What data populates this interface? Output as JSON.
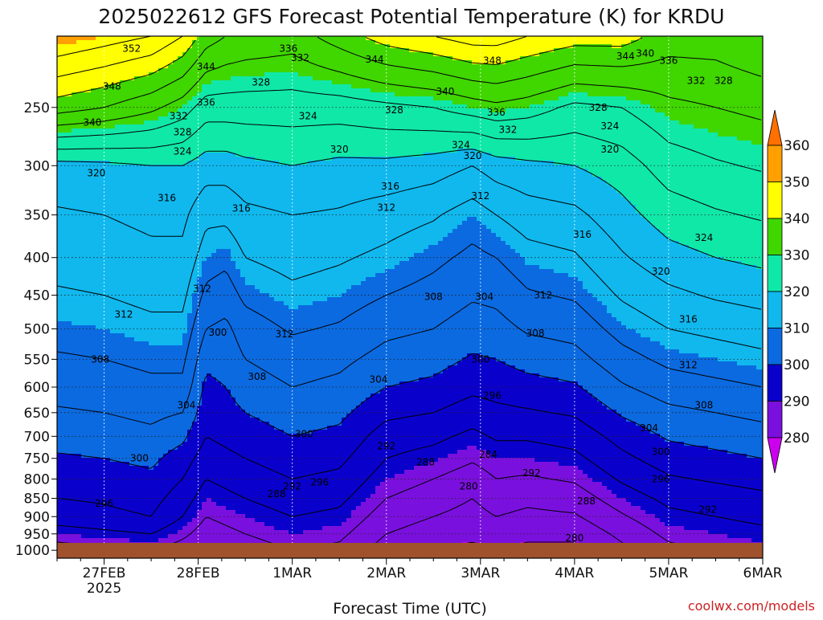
{
  "title": "2025022612 GFS Forecast Potential Temperature (K) for KRDU",
  "watermark": "coolwx.com/models",
  "chart_data": {
    "type": "heatmap",
    "title": "2025022612 GFS Forecast Potential Temperature (K) for KRDU",
    "xlabel": "Forecast Time (UTC)",
    "ylabel": "",
    "x_ticks": [
      {
        "label": "27FEB",
        "sub": "2025",
        "t": 24
      },
      {
        "label": "28FEB",
        "sub": "",
        "t": 48
      },
      {
        "label": "1MAR",
        "sub": "",
        "t": 72
      },
      {
        "label": "2MAR",
        "sub": "",
        "t": 96
      },
      {
        "label": "3MAR",
        "sub": "",
        "t": 120
      },
      {
        "label": "4MAR",
        "sub": "",
        "t": 144
      },
      {
        "label": "5MAR",
        "sub": "",
        "t": 168
      },
      {
        "label": "6MAR",
        "sub": "",
        "t": 192
      }
    ],
    "x_range_hours": [
      12,
      192
    ],
    "y_ticks": [
      250,
      300,
      350,
      400,
      450,
      500,
      550,
      600,
      650,
      700,
      750,
      800,
      850,
      900,
      950,
      1000
    ],
    "y_range_hPa": [
      200,
      1025
    ],
    "y_scale": "log",
    "grid": true,
    "colorbar": {
      "levels": [
        280,
        290,
        300,
        310,
        320,
        330,
        340,
        350,
        360
      ],
      "colors": [
        "#cc00ee",
        "#7a10dd",
        "#0a00cc",
        "#0b6ae0",
        "#10b8ee",
        "#10e8a8",
        "#40d600",
        "#ffff00",
        "#ffa000",
        "#ff7000"
      ],
      "labels": [
        "280",
        "290",
        "300",
        "310",
        "320",
        "330",
        "340",
        "350",
        "360"
      ]
    },
    "profiles": [
      {
        "t": 12,
        "p": [
          1000,
          950,
          900,
          850,
          800,
          750,
          700,
          650,
          600,
          550,
          500,
          450,
          400,
          350,
          300,
          250,
          200
        ],
        "theta": [
          286,
          290,
          294,
          296,
          297.5,
          299.5,
          301.5,
          303.5,
          305.5,
          307.5,
          309.5,
          311.5,
          313.5,
          315.5,
          318.5,
          338,
          352
        ]
      },
      {
        "t": 24,
        "p": [
          1000,
          950,
          900,
          850,
          800,
          750,
          700,
          650,
          600,
          550,
          500,
          450,
          400,
          350,
          300,
          250,
          200
        ],
        "theta": [
          287,
          291,
          295,
          296.5,
          298,
          300,
          302,
          304,
          306,
          308,
          310,
          312,
          314,
          316,
          319,
          336,
          350
        ]
      },
      {
        "t": 36,
        "p": [
          1000,
          950,
          900,
          850,
          800,
          750,
          700,
          650,
          600,
          550,
          500,
          450,
          400,
          350,
          300,
          250,
          200
        ],
        "theta": [
          288,
          292,
          296,
          297.5,
          299,
          301,
          303,
          305,
          307,
          309,
          311,
          313,
          315,
          317,
          320,
          333,
          348
        ]
      },
      {
        "t": 44,
        "p": [
          1000,
          950,
          900,
          850,
          800,
          750,
          700,
          650,
          600,
          550,
          500,
          450,
          400,
          350,
          300,
          250,
          200
        ],
        "theta": [
          286,
          289,
          292,
          294,
          296,
          298,
          301,
          304,
          307,
          309,
          311,
          313,
          315,
          317,
          320,
          330,
          344
        ]
      },
      {
        "t": 50,
        "p": [
          1000,
          950,
          900,
          850,
          800,
          750,
          700,
          650,
          600,
          550,
          500,
          450,
          400,
          350,
          300,
          250,
          200
        ],
        "theta": [
          284,
          286,
          288,
          290,
          292,
          294,
          296,
          297.5,
          299,
          301,
          304,
          307,
          310,
          313,
          318,
          326,
          338
        ]
      },
      {
        "t": 55,
        "p": [
          1000,
          950,
          900,
          850,
          800,
          750,
          700,
          650,
          600,
          550,
          500,
          450,
          400,
          350,
          300,
          250,
          200
        ],
        "theta": [
          285,
          287,
          289,
          291,
          293,
          295,
          297,
          298.5,
          300,
          301.5,
          303,
          306,
          309,
          313,
          318,
          326,
          336
        ]
      },
      {
        "t": 60,
        "p": [
          1000,
          950,
          900,
          850,
          800,
          750,
          700,
          650,
          600,
          550,
          500,
          450,
          400,
          350,
          300,
          250,
          200
        ],
        "theta": [
          286,
          288,
          290,
          292,
          294,
          296,
          298,
          300,
          302,
          304,
          306,
          309,
          312,
          315,
          319,
          326,
          335
        ]
      },
      {
        "t": 72,
        "p": [
          1000,
          950,
          900,
          850,
          800,
          750,
          700,
          650,
          600,
          550,
          500,
          450,
          400,
          350,
          300,
          250,
          200
        ],
        "theta": [
          288,
          290,
          292,
          294,
          296,
          298,
          300,
          302,
          304,
          306,
          308.5,
          311,
          313.5,
          316,
          320,
          326,
          334
        ]
      },
      {
        "t": 84,
        "p": [
          1000,
          950,
          900,
          850,
          800,
          750,
          700,
          650,
          600,
          550,
          500,
          450,
          400,
          350,
          300,
          250,
          200
        ],
        "theta": [
          287,
          289,
          291,
          293,
          295,
          297,
          299,
          301,
          303,
          305,
          307.5,
          310,
          312.5,
          315.5,
          319,
          326,
          338
        ]
      },
      {
        "t": 96,
        "p": [
          1000,
          950,
          900,
          850,
          800,
          750,
          700,
          650,
          600,
          550,
          500,
          450,
          400,
          350,
          300,
          250,
          200
        ],
        "theta": [
          282,
          284,
          286,
          288,
          290,
          292,
          294,
          297,
          300,
          302.5,
          305,
          308,
          311,
          314,
          319,
          327,
          342
        ]
      },
      {
        "t": 108,
        "p": [
          1000,
          950,
          900,
          850,
          800,
          750,
          700,
          650,
          600,
          550,
          500,
          450,
          400,
          350,
          300,
          250,
          200
        ],
        "theta": [
          280,
          282,
          284,
          286,
          288,
          290.5,
          293,
          296,
          299,
          301.5,
          304,
          306.5,
          309,
          312.5,
          318,
          328,
          344
        ]
      },
      {
        "t": 118,
        "p": [
          1000,
          950,
          900,
          850,
          800,
          750,
          700,
          650,
          600,
          550,
          500,
          450,
          400,
          350,
          300,
          250,
          200
        ],
        "theta": [
          279,
          281,
          282.5,
          284,
          286,
          288.5,
          291,
          294,
          297,
          299.5,
          302,
          304.5,
          307,
          310,
          316,
          330,
          346
        ]
      },
      {
        "t": 124,
        "p": [
          1000,
          950,
          900,
          850,
          800,
          750,
          700,
          650,
          600,
          550,
          500,
          450,
          400,
          350,
          300,
          250,
          200
        ],
        "theta": [
          280,
          282,
          284,
          286,
          288,
          290,
          292.5,
          295,
          297.5,
          300,
          302.5,
          305,
          308,
          312,
          318,
          331,
          346
        ]
      },
      {
        "t": 132,
        "p": [
          1000,
          950,
          900,
          850,
          800,
          750,
          700,
          650,
          600,
          550,
          500,
          450,
          400,
          350,
          300,
          250,
          200
        ],
        "theta": [
          279,
          281,
          283,
          285,
          287.5,
          290,
          292.5,
          295.5,
          298.5,
          301.5,
          304.5,
          307.5,
          310.5,
          314,
          319,
          330,
          344
        ]
      },
      {
        "t": 144,
        "p": [
          1000,
          950,
          900,
          850,
          800,
          750,
          700,
          650,
          600,
          550,
          500,
          450,
          400,
          350,
          300,
          250,
          200
        ],
        "theta": [
          279,
          281,
          283.5,
          286,
          288.5,
          291,
          293.5,
          296.5,
          299.5,
          302.5,
          305.5,
          308.5,
          311.5,
          315,
          320,
          327,
          342
        ]
      },
      {
        "t": 156,
        "p": [
          1000,
          950,
          900,
          850,
          800,
          750,
          700,
          650,
          600,
          550,
          500,
          450,
          400,
          350,
          300,
          250,
          200
        ],
        "theta": [
          283,
          285,
          287.5,
          290,
          292.5,
          295,
          297.5,
          300.5,
          303.5,
          306.5,
          309.5,
          312.5,
          315.5,
          318.5,
          322,
          328,
          342
        ]
      },
      {
        "t": 168,
        "p": [
          1000,
          950,
          900,
          850,
          800,
          750,
          700,
          650,
          600,
          550,
          500,
          450,
          400,
          350,
          300,
          250,
          200
        ],
        "theta": [
          287,
          289,
          291,
          293,
          295.5,
          298,
          300.5,
          303,
          306,
          309,
          312,
          315,
          318.5,
          322,
          326,
          331,
          338
        ]
      },
      {
        "t": 180,
        "p": [
          1000,
          950,
          900,
          850,
          800,
          750,
          700,
          650,
          600,
          550,
          500,
          450,
          400,
          350,
          300,
          250,
          200
        ],
        "theta": [
          288,
          290,
          292,
          294,
          296.5,
          299,
          301.5,
          304,
          307,
          310,
          313,
          316.5,
          320,
          323.5,
          327.5,
          332,
          338
        ]
      },
      {
        "t": 192,
        "p": [
          1000,
          950,
          900,
          850,
          800,
          750,
          700,
          650,
          600,
          550,
          500,
          450,
          400,
          350,
          300,
          250,
          200
        ],
        "theta": [
          289,
          291,
          293,
          295,
          297.5,
          300,
          302.5,
          305,
          308,
          311,
          314,
          317.5,
          321,
          324.5,
          328.5,
          333,
          340
        ]
      }
    ],
    "contour_labels": [
      {
        "text": "352",
        "t": 31,
        "p": 208
      },
      {
        "text": "344",
        "t": 50,
        "p": 220
      },
      {
        "text": "348",
        "t": 26,
        "p": 234
      },
      {
        "text": "336",
        "t": 50,
        "p": 246
      },
      {
        "text": "340",
        "t": 21,
        "p": 262
      },
      {
        "text": "332",
        "t": 43,
        "p": 257
      },
      {
        "text": "328",
        "t": 44,
        "p": 270
      },
      {
        "text": "324",
        "t": 44,
        "p": 287
      },
      {
        "text": "320",
        "t": 22,
        "p": 307
      },
      {
        "text": "316",
        "t": 40,
        "p": 332
      },
      {
        "text": "316",
        "t": 59,
        "p": 343
      },
      {
        "text": "312",
        "t": 49,
        "p": 441
      },
      {
        "text": "312",
        "t": 29,
        "p": 478
      },
      {
        "text": "300",
        "t": 53,
        "p": 506
      },
      {
        "text": "308",
        "t": 23,
        "p": 550
      },
      {
        "text": "312",
        "t": 70,
        "p": 508
      },
      {
        "text": "308",
        "t": 63,
        "p": 581
      },
      {
        "text": "304",
        "t": 45,
        "p": 635
      },
      {
        "text": "300",
        "t": 33,
        "p": 750
      },
      {
        "text": "296",
        "t": 24,
        "p": 864
      },
      {
        "text": "288",
        "t": 68,
        "p": 838
      },
      {
        "text": "292",
        "t": 72,
        "p": 818
      },
      {
        "text": "296",
        "t": 79,
        "p": 808
      },
      {
        "text": "300",
        "t": 75,
        "p": 695
      },
      {
        "text": "304",
        "t": 94,
        "p": 586
      },
      {
        "text": "292",
        "t": 96,
        "p": 722
      },
      {
        "text": "288",
        "t": 106,
        "p": 759
      },
      {
        "text": "280",
        "t": 117,
        "p": 818
      },
      {
        "text": "284",
        "t": 122,
        "p": 741
      },
      {
        "text": "296",
        "t": 123,
        "p": 616
      },
      {
        "text": "300",
        "t": 120,
        "p": 550
      },
      {
        "text": "304",
        "t": 121,
        "p": 452
      },
      {
        "text": "308",
        "t": 108,
        "p": 452
      },
      {
        "text": "312",
        "t": 120,
        "p": 330
      },
      {
        "text": "312",
        "t": 96,
        "p": 342
      },
      {
        "text": "316",
        "t": 97,
        "p": 320
      },
      {
        "text": "320",
        "t": 84,
        "p": 285
      },
      {
        "text": "324",
        "t": 76,
        "p": 257
      },
      {
        "text": "328",
        "t": 64,
        "p": 231
      },
      {
        "text": "336",
        "t": 71,
        "p": 208
      },
      {
        "text": "332",
        "t": 74,
        "p": 214
      },
      {
        "text": "344",
        "t": 93,
        "p": 215
      },
      {
        "text": "328",
        "t": 98,
        "p": 252
      },
      {
        "text": "324",
        "t": 115,
        "p": 281
      },
      {
        "text": "320",
        "t": 118,
        "p": 291
      },
      {
        "text": "340",
        "t": 111,
        "p": 238
      },
      {
        "text": "336",
        "t": 124,
        "p": 254
      },
      {
        "text": "332",
        "t": 127,
        "p": 268
      },
      {
        "text": "348",
        "t": 123,
        "p": 216
      },
      {
        "text": "344",
        "t": 157,
        "p": 213
      },
      {
        "text": "340",
        "t": 162,
        "p": 211
      },
      {
        "text": "336",
        "t": 168,
        "p": 216
      },
      {
        "text": "332",
        "t": 175,
        "p": 230
      },
      {
        "text": "328",
        "t": 182,
        "p": 230
      },
      {
        "text": "328",
        "t": 150,
        "p": 250
      },
      {
        "text": "324",
        "t": 153,
        "p": 265
      },
      {
        "text": "320",
        "t": 153,
        "p": 285
      },
      {
        "text": "316",
        "t": 146,
        "p": 372
      },
      {
        "text": "312",
        "t": 136,
        "p": 450
      },
      {
        "text": "308",
        "t": 134,
        "p": 507
      },
      {
        "text": "316",
        "t": 173,
        "p": 485
      },
      {
        "text": "320",
        "t": 166,
        "p": 418
      },
      {
        "text": "324",
        "t": 177,
        "p": 376
      },
      {
        "text": "312",
        "t": 173,
        "p": 560
      },
      {
        "text": "308",
        "t": 177,
        "p": 635
      },
      {
        "text": "304",
        "t": 163,
        "p": 682
      },
      {
        "text": "300",
        "t": 166,
        "p": 735
      },
      {
        "text": "296",
        "t": 166,
        "p": 800
      },
      {
        "text": "292",
        "t": 133,
        "p": 785
      },
      {
        "text": "292",
        "t": 178,
        "p": 880
      },
      {
        "text": "288",
        "t": 147,
        "p": 857
      },
      {
        "text": "280",
        "t": 144,
        "p": 962
      }
    ]
  }
}
